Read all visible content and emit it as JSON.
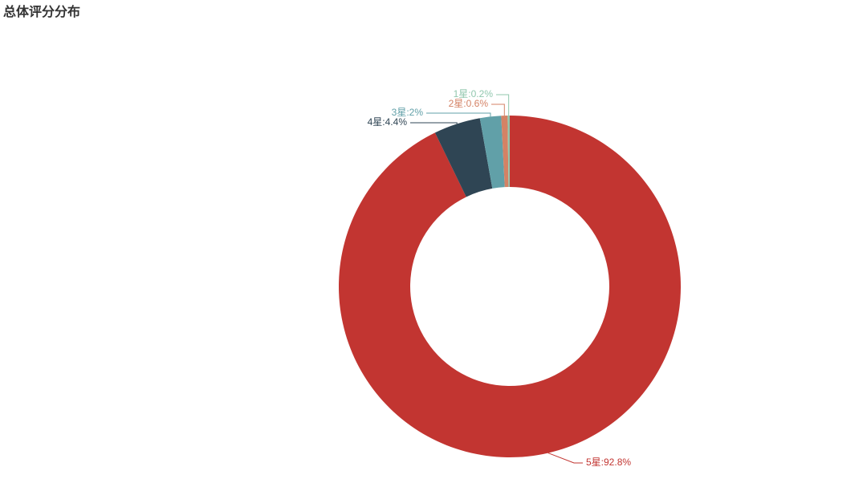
{
  "chart_data": {
    "type": "pie",
    "title": "总体评分分布",
    "values": [
      92.8,
      4.4,
      2,
      0.6,
      0.2
    ],
    "value_labels": [
      "5星:92.8%",
      "4星:4.4%",
      "3星:2%",
      "2星:0.6%",
      "1星:0.2%"
    ],
    "colors": [
      "#c23531",
      "#2f4554",
      "#61a0a8",
      "#d48265",
      "#91c7ae"
    ]
  }
}
